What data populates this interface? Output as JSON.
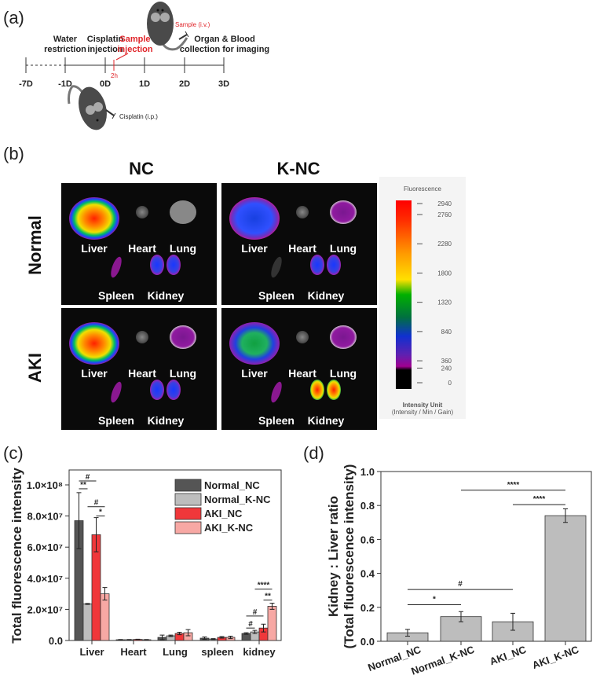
{
  "panels": {
    "a": "(a)",
    "b": "(b)",
    "c": "(c)",
    "d": "(d)"
  },
  "timeline": {
    "ticks": [
      "-7D",
      "-1D",
      "0D",
      "1D",
      "2D",
      "3D"
    ],
    "marker_2h": "2h",
    "events": {
      "water_1": "Water",
      "water_2": "restriction",
      "cis_1": "Cisplatin",
      "cis_2": "injection",
      "sample_1": "Sample",
      "sample_2": "injection",
      "organ_1": "Organ & Blood",
      "organ_2": "collection for imaging"
    },
    "sample_route": "Sample (i.v.)",
    "cisplatin_route": "Cisplatin (i.p.)"
  },
  "imaging": {
    "columns": [
      "NC",
      "K-NC"
    ],
    "rows": [
      "Normal",
      "AKI"
    ],
    "organs": [
      "Liver",
      "Heart",
      "Lung",
      "Spleen",
      "Kidney"
    ],
    "colorbar": {
      "title": "Fluorescence",
      "ticks": [
        "2940",
        "2760",
        "2280",
        "1800",
        "1320",
        "840",
        "360",
        "240",
        "0"
      ],
      "unit": "Intensity Unit",
      "unit_sub": "(Intensity / Min / Gain)"
    }
  },
  "chart_data": [
    {
      "type": "bar",
      "title": "",
      "xlabel": "",
      "ylabel": "Total fluorescence intensity",
      "ylim": [
        0,
        110000000
      ],
      "yticks": [
        "0.0",
        "2.0×10⁷",
        "4.0×10⁷",
        "6.0×10⁷",
        "8.0×10⁷",
        "1.0×10⁸"
      ],
      "ytick_values": [
        0,
        20000000,
        40000000,
        60000000,
        80000000,
        100000000
      ],
      "categories": [
        "Liver",
        "Heart",
        "Lung",
        "spleen",
        "kidney"
      ],
      "legend_position": "top-right",
      "series": [
        {
          "name": "Normal_NC",
          "color": "#555555",
          "values": [
            77000000,
            500000,
            2000000,
            1500000,
            4500000
          ],
          "errors": [
            18000000,
            100000,
            1500000,
            800000,
            500000
          ]
        },
        {
          "name": "Normal_K-NC",
          "color": "#bdbdbd",
          "values": [
            23500000,
            500000,
            3000000,
            900000,
            5500000
          ],
          "errors": [
            300000,
            100000,
            500000,
            300000,
            1000000
          ]
        },
        {
          "name": "AKI_NC",
          "color": "#f0373a",
          "values": [
            68000000,
            700000,
            4500000,
            2000000,
            8000000
          ],
          "errors": [
            11000000,
            100000,
            800000,
            500000,
            2500000
          ]
        },
        {
          "name": "AKI_K-NC",
          "color": "#f7a8a4",
          "values": [
            30000000,
            500000,
            5000000,
            2000000,
            22000000
          ],
          "errors": [
            4000000,
            100000,
            2000000,
            800000,
            2000000
          ]
        }
      ],
      "significance": [
        {
          "group": 0,
          "from": 0,
          "to": 2,
          "y": 102500000,
          "label": "#"
        },
        {
          "group": 0,
          "from": 0,
          "to": 1,
          "y": 97500000,
          "label": "**"
        },
        {
          "group": 0,
          "from": 1,
          "to": 3,
          "y": 86000000,
          "label": "#"
        },
        {
          "group": 0,
          "from": 2,
          "to": 3,
          "y": 80000000,
          "label": "*"
        },
        {
          "group": 4,
          "from": 1,
          "to": 3,
          "y": 33000000,
          "label": "****"
        },
        {
          "group": 4,
          "from": 2,
          "to": 3,
          "y": 26000000,
          "label": "**"
        },
        {
          "group": 4,
          "from": 0,
          "to": 2,
          "y": 15700000,
          "label": "#"
        },
        {
          "group": 4,
          "from": 0,
          "to": 1,
          "y": 8000000,
          "label": "#"
        }
      ]
    },
    {
      "type": "bar",
      "title": "",
      "xlabel": "",
      "ylabel_1": "Kidney : Liver ratio",
      "ylabel_2": "(Total fluorescence intensity)",
      "ylim": [
        0,
        1.0
      ],
      "yticks": [
        "0.0",
        "0.2",
        "0.4",
        "0.6",
        "0.8",
        "1.0"
      ],
      "ytick_values": [
        0,
        0.2,
        0.4,
        0.6,
        0.8,
        1.0
      ],
      "categories": [
        "Normal_NC",
        "Normal_K-NC",
        "AKI_NC",
        "AKI_K-NC"
      ],
      "color": "#bdbdbd",
      "values": [
        0.05,
        0.145,
        0.115,
        0.74
      ],
      "errors": [
        0.02,
        0.03,
        0.05,
        0.04
      ],
      "significance": [
        {
          "from": 1,
          "to": 3,
          "y": 0.89,
          "label": "****"
        },
        {
          "from": 2,
          "to": 3,
          "y": 0.805,
          "label": "****"
        },
        {
          "from": 0,
          "to": 2,
          "y": 0.305,
          "label": "#"
        },
        {
          "from": 0,
          "to": 1,
          "y": 0.215,
          "label": "*"
        }
      ]
    }
  ]
}
